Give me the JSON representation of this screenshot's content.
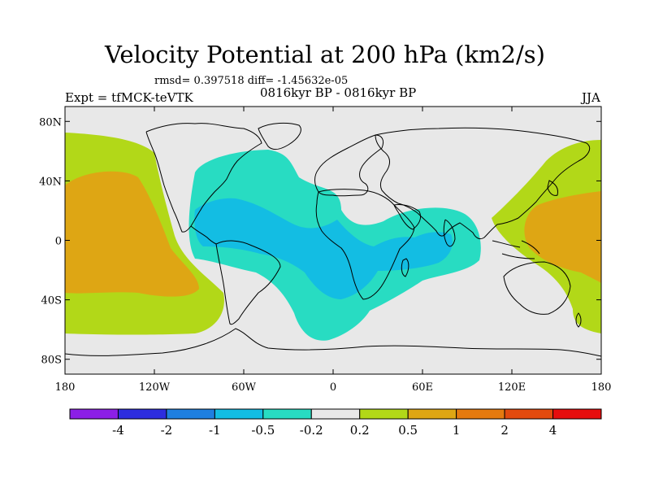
{
  "title": "Velocity Potential at 200 hPa (km2/s)",
  "stats": "rmsd= 0.397518 diff= -1.45632e-05",
  "expt": "Expt = tfMCK-teVTK",
  "period": "0816kyr BP - 0816kyr BP",
  "season": "JJA",
  "map": {
    "lon_range": [
      -180,
      180
    ],
    "lat_range": [
      -90,
      90
    ],
    "lat_ticks": [
      {
        "value": 80,
        "label": "80N"
      },
      {
        "value": 40,
        "label": "40N"
      },
      {
        "value": 0,
        "label": "0"
      },
      {
        "value": -40,
        "label": "40S"
      },
      {
        "value": -80,
        "label": "80S"
      }
    ],
    "lon_ticks": [
      {
        "value": -180,
        "label": "180"
      },
      {
        "value": -120,
        "label": "120W"
      },
      {
        "value": -60,
        "label": "60W"
      },
      {
        "value": 0,
        "label": "0"
      },
      {
        "value": 60,
        "label": "60E"
      },
      {
        "value": 120,
        "label": "120E"
      },
      {
        "value": 180,
        "label": "180"
      }
    ],
    "background_color": "#e8e8e8"
  },
  "colorbar": {
    "colors": [
      "#8c1fe6",
      "#2d2ddf",
      "#1f7fe0",
      "#13bde3",
      "#28dcc2",
      "#e8e8e8",
      "#b2d818",
      "#dea614",
      "#e57a0f",
      "#e24a0e",
      "#e60d0d"
    ],
    "labels": [
      "-4",
      "-2",
      "-1",
      "-0.5",
      "-0.2",
      "0.2",
      "0.5",
      "1",
      "2",
      "4"
    ]
  }
}
